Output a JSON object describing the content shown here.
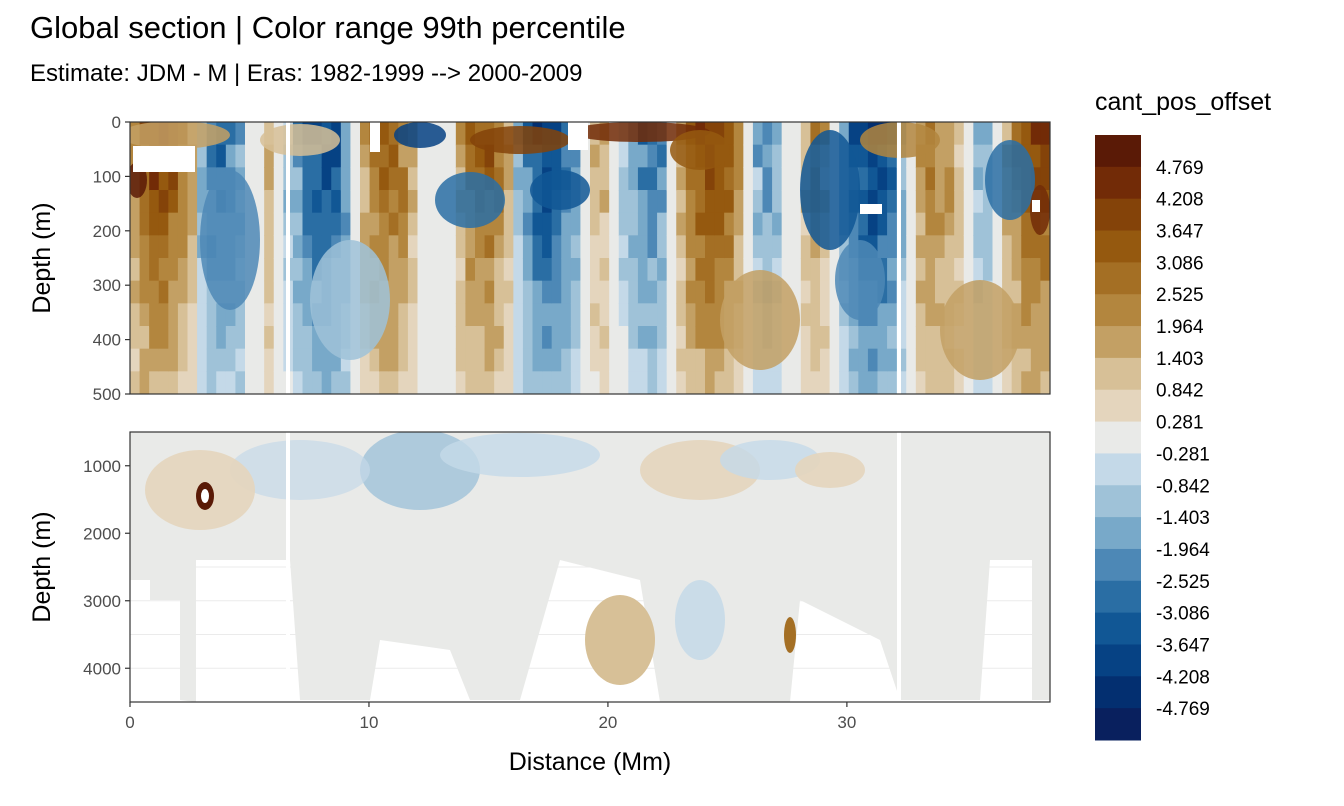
{
  "title": "Global section | Color range 99th percentile",
  "subtitle": "Estimate: JDM - M | Eras: 1982-1999 --> 2000-2009",
  "colors": {
    "brown": "#5a1a06",
    "tan": "#e4d5bd",
    "neutral": "#e9eae8",
    "lightblue": "#c4d9e8",
    "darkblue": "#09205e"
  },
  "chart_data": [
    {
      "type": "heatmap",
      "panel": "upper",
      "xlabel": "",
      "ylabel": "Depth (m)",
      "xlim": [
        0,
        38.5
      ],
      "ylim": [
        500,
        0
      ],
      "yticks": [
        "0",
        "100",
        "200",
        "300",
        "400",
        "500"
      ],
      "grid": true
    },
    {
      "type": "heatmap",
      "panel": "lower",
      "xlabel": "Distance (Mm)",
      "ylabel": "Depth (m)",
      "xlim": [
        0,
        38.5
      ],
      "ylim": [
        4500,
        500
      ],
      "xticks": [
        "0",
        "10",
        "20",
        "30"
      ],
      "yticks": [
        "1000",
        "2000",
        "3000",
        "4000"
      ],
      "grid": true
    }
  ],
  "legend": {
    "title": "cant_pos_offset",
    "position": "right",
    "levels": [
      "4.769",
      "4.208",
      "3.647",
      "3.086",
      "2.525",
      "1.964",
      "1.403",
      "0.842",
      "0.281",
      "-0.281",
      "-0.842",
      "-1.403",
      "-1.964",
      "-2.525",
      "-3.086",
      "-3.647",
      "-4.208",
      "-4.769"
    ],
    "palette": [
      "#5a1a06",
      "#722b07",
      "#844309",
      "#95590f",
      "#a46f24",
      "#b3863e",
      "#c3a064",
      "#d7c097",
      "#e4d5bd",
      "#e9eae8",
      "#c4d9e8",
      "#9fc2d8",
      "#78a9c9",
      "#4d88b6",
      "#2a6ea4",
      "#115795",
      "#064284",
      "#032f70",
      "#09205e"
    ]
  }
}
